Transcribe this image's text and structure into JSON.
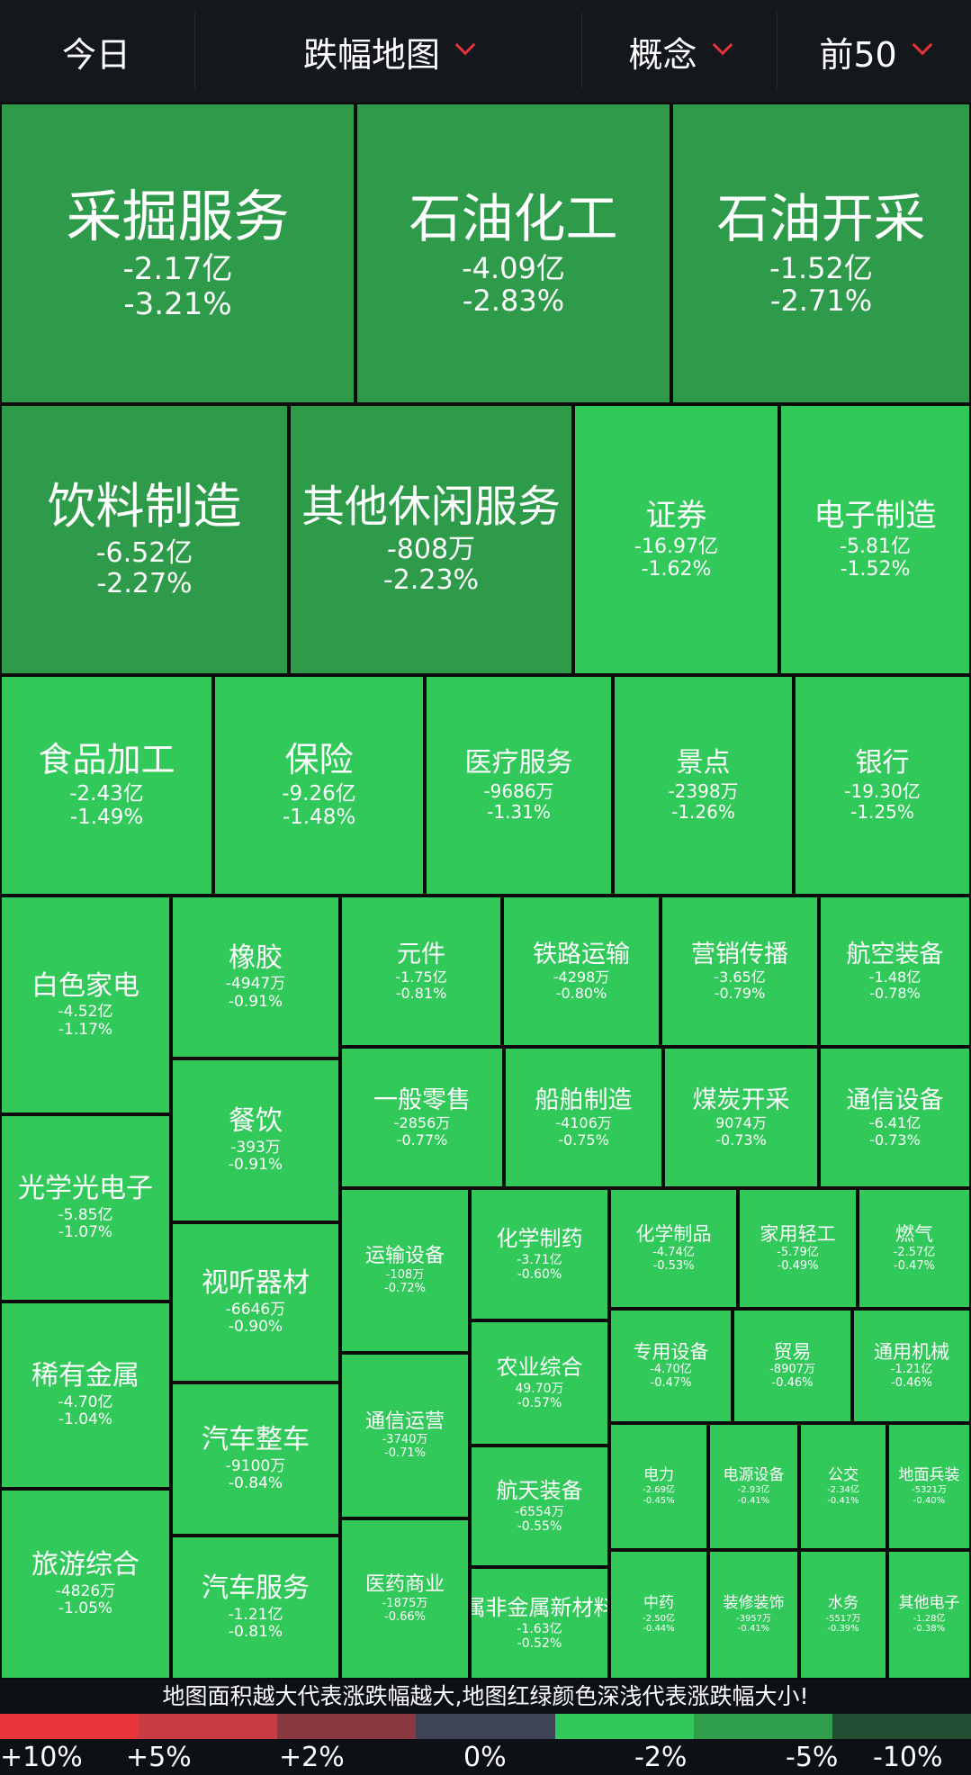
{
  "header": {
    "period": "今日",
    "view": "跌幅地图",
    "category": "概念",
    "top_n": "前50"
  },
  "colors": {
    "dark_green": "#2e9b4a",
    "bright_green": "#31c95a",
    "scale": [
      "#e8353b",
      "#c83a44",
      "#8a3740",
      "#3e4455",
      "#31c95a",
      "#2f9e4b",
      "#244e34"
    ]
  },
  "sectors": [
    {
      "name": "采掘服务",
      "amount": "-2.17亿",
      "change": "-3.21%"
    },
    {
      "name": "石油化工",
      "amount": "-4.09亿",
      "change": "-2.83%"
    },
    {
      "name": "石油开采",
      "amount": "-1.52亿",
      "change": "-2.71%"
    },
    {
      "name": "饮料制造",
      "amount": "-6.52亿",
      "change": "-2.27%"
    },
    {
      "name": "其他休闲服务",
      "amount": "-808万",
      "change": "-2.23%"
    },
    {
      "name": "证券",
      "amount": "-16.97亿",
      "change": "-1.62%"
    },
    {
      "name": "电子制造",
      "amount": "-5.81亿",
      "change": "-1.52%"
    },
    {
      "name": "食品加工",
      "amount": "-2.43亿",
      "change": "-1.49%"
    },
    {
      "name": "保险",
      "amount": "-9.26亿",
      "change": "-1.48%"
    },
    {
      "name": "医疗服务",
      "amount": "-9686万",
      "change": "-1.31%"
    },
    {
      "name": "景点",
      "amount": "-2398万",
      "change": "-1.26%"
    },
    {
      "name": "银行",
      "amount": "-19.30亿",
      "change": "-1.25%"
    },
    {
      "name": "白色家电",
      "amount": "-4.52亿",
      "change": "-1.17%"
    },
    {
      "name": "橡胶",
      "amount": "-4947万",
      "change": "-0.91%"
    },
    {
      "name": "元件",
      "amount": "-1.75亿",
      "change": "-0.81%"
    },
    {
      "name": "铁路运输",
      "amount": "-4298万",
      "change": "-0.80%"
    },
    {
      "name": "营销传播",
      "amount": "-3.65亿",
      "change": "-0.79%"
    },
    {
      "name": "航空装备",
      "amount": "-1.48亿",
      "change": "-0.78%"
    },
    {
      "name": "光学光电子",
      "amount": "-5.85亿",
      "change": "-1.07%"
    },
    {
      "name": "餐饮",
      "amount": "-393万",
      "change": "-0.91%"
    },
    {
      "name": "一般零售",
      "amount": "-2856万",
      "change": "-0.77%"
    },
    {
      "name": "船舶制造",
      "amount": "-4106万",
      "change": "-0.75%"
    },
    {
      "name": "煤炭开采",
      "amount": "9074万",
      "change": "-0.73%"
    },
    {
      "name": "通信设备",
      "amount": "-6.41亿",
      "change": "-0.73%"
    },
    {
      "name": "稀有金属",
      "amount": "-4.70亿",
      "change": "-1.04%"
    },
    {
      "name": "视听器材",
      "amount": "-6646万",
      "change": "-0.90%"
    },
    {
      "name": "运输设备",
      "amount": "-108万",
      "change": "-0.72%"
    },
    {
      "name": "化学制药",
      "amount": "-3.71亿",
      "change": "-0.60%"
    },
    {
      "name": "化学制品",
      "amount": "-4.74亿",
      "change": "-0.53%"
    },
    {
      "name": "家用轻工",
      "amount": "-5.79亿",
      "change": "-0.49%"
    },
    {
      "name": "燃气",
      "amount": "-2.57亿",
      "change": "-0.47%"
    },
    {
      "name": "农业综合",
      "amount": "49.70万",
      "change": "-0.57%"
    },
    {
      "name": "专用设备",
      "amount": "-4.70亿",
      "change": "-0.47%"
    },
    {
      "name": "贸易",
      "amount": "-8907万",
      "change": "-0.46%"
    },
    {
      "name": "通用机械",
      "amount": "-1.21亿",
      "change": "-0.46%"
    },
    {
      "name": "旅游综合",
      "amount": "-4826万",
      "change": "-1.05%"
    },
    {
      "name": "汽车整车",
      "amount": "-9100万",
      "change": "-0.84%"
    },
    {
      "name": "通信运营",
      "amount": "-3740万",
      "change": "-0.71%"
    },
    {
      "name": "航天装备",
      "amount": "-6554万",
      "change": "-0.55%"
    },
    {
      "name": "电力",
      "amount": "-2.69亿",
      "change": "-0.45%"
    },
    {
      "name": "电源设备",
      "amount": "-2.93亿",
      "change": "-0.41%"
    },
    {
      "name": "公交",
      "amount": "-2.34亿",
      "change": "-0.41%"
    },
    {
      "name": "地面兵装",
      "amount": "-5321万",
      "change": "-0.40%"
    },
    {
      "name": "汽车服务",
      "amount": "-1.21亿",
      "change": "-0.81%"
    },
    {
      "name": "医药商业",
      "amount": "-1875万",
      "change": "-0.66%"
    },
    {
      "name": "属非金属新材料",
      "amount": "-1.63亿",
      "change": "-0.52%"
    },
    {
      "name": "中药",
      "amount": "-2.50亿",
      "change": "-0.44%"
    },
    {
      "name": "装修装饰",
      "amount": "-3957万",
      "change": "-0.41%"
    },
    {
      "name": "水务",
      "amount": "-5517万",
      "change": "-0.39%"
    },
    {
      "name": "其他电子",
      "amount": "-1.28亿",
      "change": "-0.38%"
    }
  ],
  "legend": {
    "note": "地图面积越大代表涨跌幅越大,地图红绿颜色深浅代表涨跌幅大小!",
    "labels": [
      "+10%",
      "+5%",
      "+2%",
      "0%",
      "-2%",
      "-5%",
      "-10%"
    ]
  }
}
